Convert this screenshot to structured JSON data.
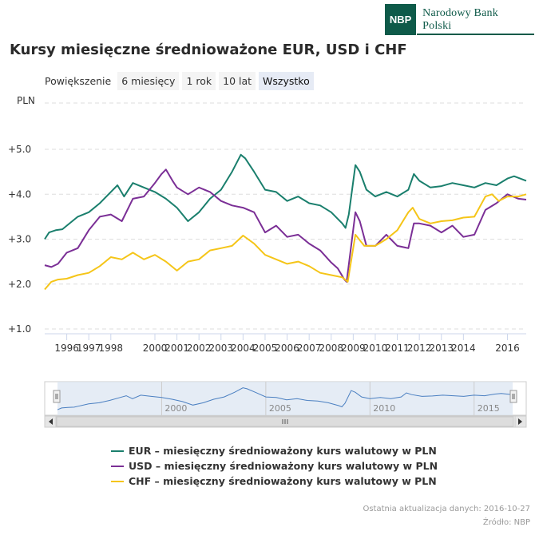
{
  "logo": {
    "badge": "NBP",
    "name": "Narodowy Bank Polski"
  },
  "zoom": {
    "label": "Powiększenie",
    "buttons": [
      "6 miesięcy",
      "1 rok",
      "10 lat",
      "Wszystko"
    ],
    "active": "Wszystko"
  },
  "navigator": {
    "tick_labels": [
      "2000",
      "2005",
      "2010",
      "2015"
    ]
  },
  "footer": {
    "updated": "Ostatnia aktualizacja danych: 2016-10-27",
    "source": "Źródło: NBP"
  },
  "chart_data": {
    "type": "line",
    "title": "Kursy miesięczne średnioważone EUR, USD i CHF",
    "ylabel": "PLN",
    "ylim": [
      1.0,
      5.0
    ],
    "yticks": [
      5.0,
      4.0,
      3.0,
      2.0,
      1.0
    ],
    "ytick_labels": [
      "+5.0",
      "+4.0",
      "+3.0",
      "+2.0",
      "+1.0"
    ],
    "xlim": [
      1995.0,
      2016.85
    ],
    "xticks": [
      1996,
      1997,
      1998,
      2000,
      2001,
      2002,
      2003,
      2004,
      2005,
      2006,
      2007,
      2008,
      2009,
      2010,
      2011,
      2012,
      2013,
      2014,
      2016
    ],
    "grid": true,
    "legend_position": "bottom",
    "colors": {
      "EUR": "#1a7f6d",
      "USD": "#7b2f96",
      "CHF": "#f5c518"
    },
    "series": [
      {
        "name": "EUR – miesięczny średnioważony kurs walutowy w PLN",
        "key": "EUR",
        "x": [
          1995.0,
          1995.2,
          1995.5,
          1995.8,
          1996.0,
          1996.5,
          1997.0,
          1997.5,
          1998.0,
          1998.3,
          1998.6,
          1999.0,
          1999.5,
          2000.0,
          2000.5,
          2001.0,
          2001.5,
          2002.0,
          2002.5,
          2003.0,
          2003.5,
          2003.9,
          2004.1,
          2004.5,
          2005.0,
          2005.5,
          2006.0,
          2006.5,
          2007.0,
          2007.5,
          2008.0,
          2008.5,
          2008.65,
          2008.8,
          2009.1,
          2009.3,
          2009.6,
          2010.0,
          2010.5,
          2011.0,
          2011.5,
          2011.75,
          2012.0,
          2012.5,
          2013.0,
          2013.5,
          2014.0,
          2014.5,
          2015.0,
          2015.5,
          2016.0,
          2016.3,
          2016.85
        ],
        "values": [
          3.0,
          3.15,
          3.2,
          3.22,
          3.3,
          3.5,
          3.6,
          3.8,
          4.05,
          4.2,
          3.95,
          4.25,
          4.15,
          4.05,
          3.9,
          3.7,
          3.4,
          3.6,
          3.9,
          4.1,
          4.5,
          4.88,
          4.8,
          4.5,
          4.1,
          4.05,
          3.85,
          3.95,
          3.8,
          3.75,
          3.6,
          3.35,
          3.25,
          3.55,
          4.65,
          4.5,
          4.1,
          3.95,
          4.05,
          3.95,
          4.1,
          4.45,
          4.3,
          4.15,
          4.18,
          4.25,
          4.2,
          4.15,
          4.25,
          4.2,
          4.35,
          4.4,
          4.3
        ]
      },
      {
        "name": "USD – miesięczny średnioważony kurs walutowy w PLN",
        "key": "USD",
        "x": [
          1995.0,
          1995.3,
          1995.6,
          1996.0,
          1996.5,
          1997.0,
          1997.5,
          1998.0,
          1998.5,
          1999.0,
          1999.5,
          2000.0,
          2000.3,
          2000.5,
          2000.8,
          2001.0,
          2001.5,
          2002.0,
          2002.5,
          2003.0,
          2003.5,
          2004.0,
          2004.5,
          2005.0,
          2005.5,
          2006.0,
          2006.5,
          2007.0,
          2007.5,
          2008.0,
          2008.3,
          2008.6,
          2008.7,
          2009.1,
          2009.3,
          2009.6,
          2010.0,
          2010.5,
          2011.0,
          2011.5,
          2011.75,
          2012.0,
          2012.5,
          2013.0,
          2013.5,
          2014.0,
          2014.5,
          2015.0,
          2015.5,
          2016.0,
          2016.5,
          2016.85
        ],
        "values": [
          2.42,
          2.38,
          2.45,
          2.7,
          2.8,
          3.2,
          3.5,
          3.55,
          3.4,
          3.9,
          3.95,
          4.25,
          4.45,
          4.55,
          4.3,
          4.15,
          4.0,
          4.15,
          4.05,
          3.85,
          3.75,
          3.7,
          3.6,
          3.15,
          3.3,
          3.05,
          3.1,
          2.9,
          2.75,
          2.48,
          2.35,
          2.1,
          2.05,
          3.6,
          3.4,
          2.85,
          2.85,
          3.1,
          2.85,
          2.8,
          3.35,
          3.35,
          3.3,
          3.15,
          3.3,
          3.05,
          3.1,
          3.65,
          3.8,
          4.0,
          3.9,
          3.88
        ]
      },
      {
        "name": "CHF – miesięczny średnioważony kurs walutowy w PLN",
        "key": "CHF",
        "x": [
          1995.0,
          1995.3,
          1995.6,
          1996.0,
          1996.5,
          1997.0,
          1997.5,
          1998.0,
          1998.5,
          1999.0,
          1999.5,
          2000.0,
          2000.5,
          2001.0,
          2001.5,
          2002.0,
          2002.5,
          2003.0,
          2003.5,
          2004.0,
          2004.5,
          2005.0,
          2005.5,
          2006.0,
          2006.5,
          2007.0,
          2007.5,
          2008.0,
          2008.5,
          2008.75,
          2009.1,
          2009.5,
          2010.0,
          2010.5,
          2011.0,
          2011.5,
          2011.7,
          2012.0,
          2012.5,
          2013.0,
          2013.5,
          2014.0,
          2014.5,
          2015.0,
          2015.3,
          2015.6,
          2016.0,
          2016.5,
          2016.85
        ],
        "values": [
          1.88,
          2.05,
          2.1,
          2.12,
          2.2,
          2.25,
          2.4,
          2.6,
          2.55,
          2.7,
          2.55,
          2.65,
          2.5,
          2.3,
          2.5,
          2.55,
          2.75,
          2.8,
          2.85,
          3.08,
          2.9,
          2.65,
          2.55,
          2.45,
          2.5,
          2.4,
          2.25,
          2.2,
          2.15,
          2.05,
          3.1,
          2.85,
          2.85,
          3.0,
          3.2,
          3.6,
          3.7,
          3.45,
          3.35,
          3.4,
          3.42,
          3.48,
          3.5,
          3.95,
          4.0,
          3.85,
          3.95,
          3.95,
          4.0
        ]
      }
    ]
  }
}
